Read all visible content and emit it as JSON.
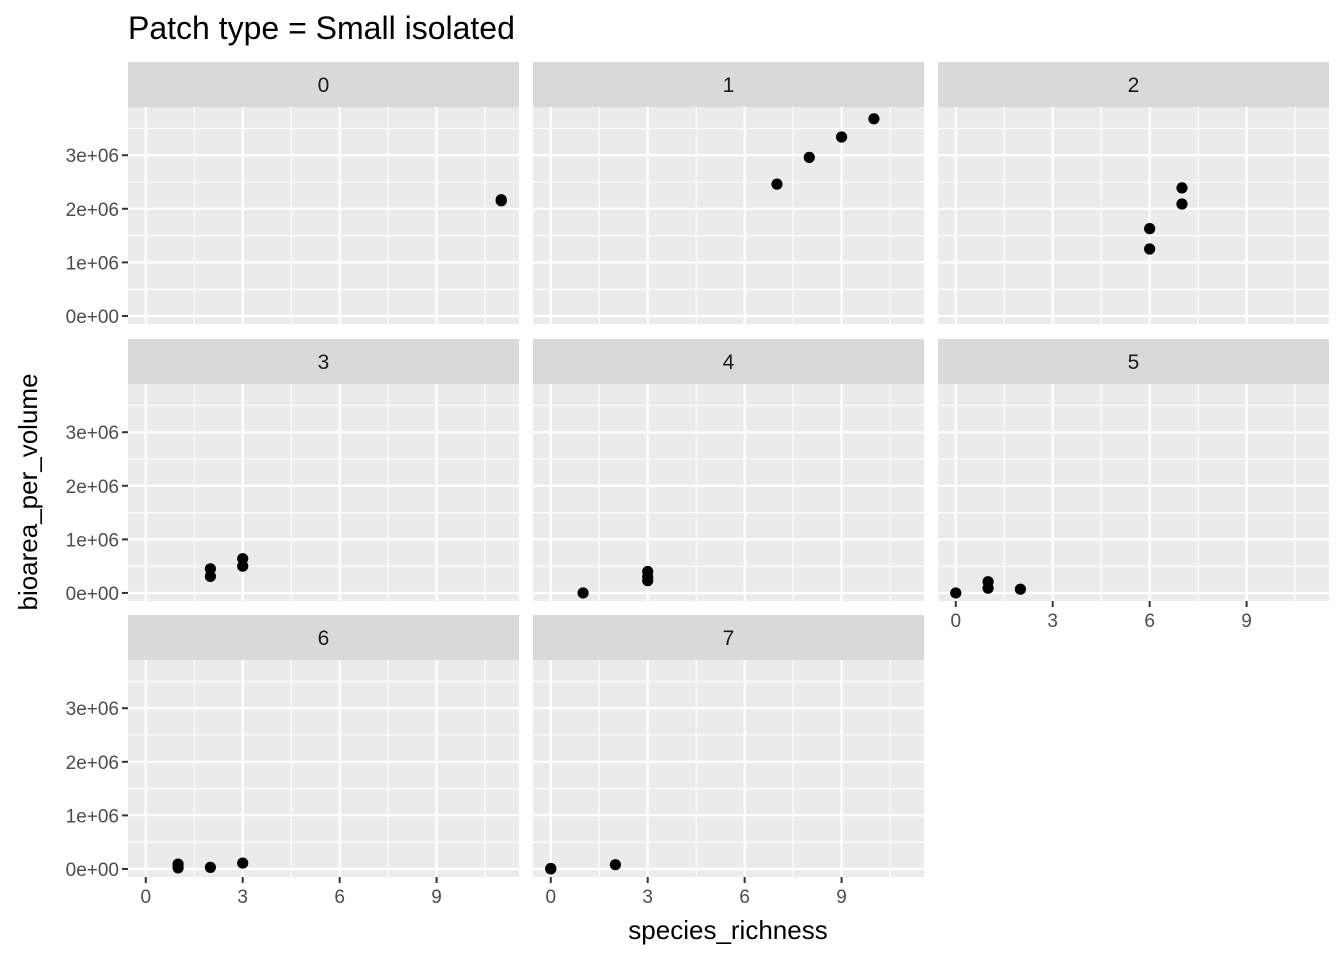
{
  "chart_data": {
    "type": "scatter",
    "title": "Patch type = Small isolated",
    "xlabel": "species_richness",
    "ylabel": "bioarea_per_volume",
    "xlim": [
      -0.55,
      11.55
    ],
    "ylim": [
      -150000,
      3900000
    ],
    "x_ticks": [
      0,
      3,
      6,
      9
    ],
    "x_tick_labels": [
      "0",
      "3",
      "6",
      "9"
    ],
    "y_ticks": [
      0,
      1000000,
      2000000,
      3000000
    ],
    "y_tick_labels": [
      "0e+00",
      "1e+06",
      "2e+06",
      "3e+06"
    ],
    "facet_layout": "3 columns × 3 rows",
    "grid": true,
    "panel_background": "#ebebeb",
    "strip_background": "#d9d9d9",
    "point_color": "#000000",
    "panels": [
      {
        "label": "0",
        "points": [
          [
            11,
            2150000
          ],
          [
            11,
            2170000
          ]
        ]
      },
      {
        "label": "1",
        "points": [
          [
            7,
            2460000
          ],
          [
            8,
            2960000
          ],
          [
            9,
            3340000
          ],
          [
            10,
            3680000
          ]
        ]
      },
      {
        "label": "2",
        "points": [
          [
            6,
            1250000
          ],
          [
            6,
            1630000
          ],
          [
            7,
            2090000
          ],
          [
            7,
            2390000
          ]
        ]
      },
      {
        "label": "3",
        "points": [
          [
            2,
            310000
          ],
          [
            2,
            450000
          ],
          [
            3,
            500000
          ],
          [
            3,
            640000
          ]
        ]
      },
      {
        "label": "4",
        "points": [
          [
            1,
            0
          ],
          [
            3,
            230000
          ],
          [
            3,
            300000
          ],
          [
            3,
            400000
          ]
        ]
      },
      {
        "label": "5",
        "points": [
          [
            0,
            0
          ],
          [
            1,
            90000
          ],
          [
            1,
            210000
          ],
          [
            2,
            70000
          ]
        ]
      },
      {
        "label": "6",
        "points": [
          [
            1,
            20000
          ],
          [
            1,
            90000
          ],
          [
            2,
            30000
          ],
          [
            3,
            110000
          ]
        ]
      },
      {
        "label": "7",
        "points": [
          [
            0,
            0
          ],
          [
            0,
            10000
          ],
          [
            2,
            80000
          ]
        ]
      }
    ]
  }
}
